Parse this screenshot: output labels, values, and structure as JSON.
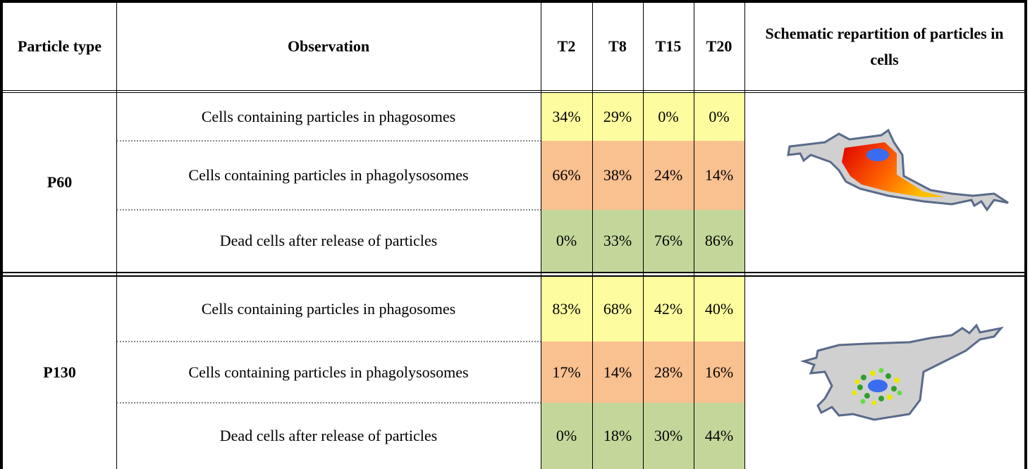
{
  "table": {
    "header": [
      "Particle type",
      "Observation",
      "T2",
      "T8",
      "T15",
      "T20",
      "Schematic repartition of particles in cells"
    ],
    "groups": [
      {
        "particle": "P60",
        "rows": [
          {
            "observation": "Cells containing particles in phagosomes",
            "values": [
              "34%",
              "29%",
              "0%",
              "0%"
            ]
          },
          {
            "observation": "Cells containing particles in phagolysosomes",
            "values": [
              "66%",
              "38%",
              "24%",
              "14%"
            ]
          },
          {
            "observation": "Dead cells after release of particles",
            "values": [
              "0%",
              "33%",
              "76%",
              "86%"
            ]
          }
        ]
      },
      {
        "particle": "P130",
        "rows": [
          {
            "observation": "Cells containing particles in phagosomes",
            "values": [
              "83%",
              "68%",
              "42%",
              "40%"
            ]
          },
          {
            "observation": "Cells containing particles in phagolysosomes",
            "values": [
              "17%",
              "14%",
              "28%",
              "16%"
            ]
          },
          {
            "observation": "Dead cells after release of particles",
            "values": [
              "0%",
              "18%",
              "30%",
              "44%"
            ]
          }
        ]
      }
    ]
  }
}
